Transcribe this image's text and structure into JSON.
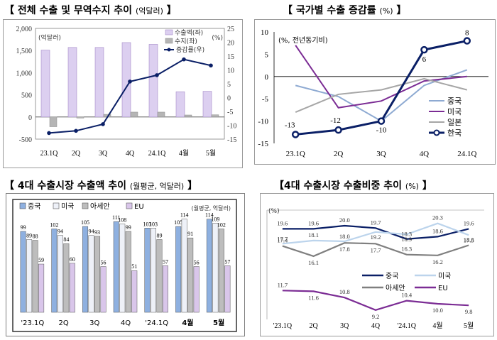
{
  "titles": {
    "p1_main": "【 전체 수출 및 무역수지 추이",
    "p1_sub": "(억달러)",
    "p1_end": "】",
    "p2_main": "【 국가별 수출 증감률",
    "p2_sub": "(%)",
    "p2_end": "】",
    "p3_main": "【 4대 수출시장 수출액 추이",
    "p3_sub": "(월평균, 억달러)",
    "p3_end": "】",
    "p4_main": "【4대 수출시장 수출비중 추이",
    "p4_sub": "(%)",
    "p4_end": "】"
  },
  "chart_data": [
    {
      "type": "bar",
      "categories": [
        "23.1Q",
        "2Q",
        "3Q",
        "4Q",
        "24.1Q",
        "4월",
        "5월"
      ],
      "unit_left": "(억달러)",
      "unit_right": "(%)",
      "ylim_left": [
        -500,
        2000
      ],
      "yticks_left": [
        "2,000",
        "1,500",
        "1,000",
        "500",
        "0",
        "-500"
      ],
      "ylim_right": [
        -15,
        25
      ],
      "yticks_right": [
        "25",
        "20",
        "15",
        "10",
        "5",
        "0",
        "-5",
        "-10",
        "-15"
      ],
      "series": [
        {
          "name": "수출액(좌)",
          "kind": "bar",
          "axis": "left",
          "color": "#dccff0",
          "values": [
            1510,
            1570,
            1570,
            1680,
            1640,
            570,
            580
          ]
        },
        {
          "name": "수지(좌)",
          "kind": "bar",
          "axis": "left",
          "color": "#b5b5b5",
          "values": [
            -220,
            -25,
            60,
            110,
            110,
            45,
            50
          ]
        },
        {
          "name": "증감률(우)",
          "kind": "line",
          "axis": "right",
          "color": "#0a1f66",
          "values": [
            -12.8,
            -12,
            -9.6,
            5.8,
            8.1,
            13.8,
            11.6
          ]
        }
      ]
    },
    {
      "type": "line",
      "title": "국가별 수출 증감률",
      "categories": [
        "23.1Q",
        "2Q",
        "3Q",
        "4Q",
        "24.1Q"
      ],
      "unit": "(%, 전년동기비)",
      "ylim": [
        -15,
        10
      ],
      "yticks": [
        "10",
        "5",
        "0",
        "-5",
        "-10",
        "-15"
      ],
      "series": [
        {
          "name": "중국",
          "color": "#8eaad2",
          "values": [
            -2,
            -4.5,
            -10,
            -2,
            1.5
          ]
        },
        {
          "name": "미국",
          "color": "#7b2c94",
          "values": [
            7,
            -7,
            -5.5,
            -1,
            0
          ]
        },
        {
          "name": "일본",
          "color": "#a6a6a6",
          "values": [
            -8,
            -4,
            -3,
            -0.5,
            -3
          ]
        },
        {
          "name": "한국",
          "color": "#0a1f66",
          "values": [
            -13,
            -12,
            -10,
            6,
            8
          ],
          "labels": [
            "-13",
            "-12",
            "-10",
            "6",
            "8"
          ]
        }
      ]
    },
    {
      "type": "bar",
      "title": "4대 수출시장 수출액 추이",
      "categories": [
        "'23.1Q",
        "2Q",
        "3Q",
        "4Q",
        "'24.1Q",
        "4월",
        "5월"
      ],
      "unit": "(월평균, 억달러)",
      "ylim": [
        0,
        125
      ],
      "series": [
        {
          "name": "중국",
          "color": "#8eb0e0",
          "values": [
            99,
            102,
            105,
            111,
            103,
            105,
            114
          ]
        },
        {
          "name": "미국",
          "color": "#eef1f8",
          "values": [
            89,
            94,
            94,
            108,
            103,
            114,
            109
          ]
        },
        {
          "name": "아세안",
          "color": "#bdbdbd",
          "values": [
            88,
            84,
            93,
            99,
            89,
            91,
            102
          ]
        },
        {
          "name": "EU",
          "color": "#d9c6ea",
          "values": [
            59,
            60,
            56,
            51,
            57,
            56,
            57
          ]
        }
      ]
    },
    {
      "type": "line",
      "title": "4대 수출시장 수출비중 추이",
      "categories": [
        "'23.1Q",
        "2Q",
        "3Q",
        "4Q",
        "'24.1Q",
        "4월",
        "5월"
      ],
      "unit": "(%)",
      "ylim": [
        8,
        22
      ],
      "series": [
        {
          "name": "중국",
          "color": "#0a1f66",
          "values": [
            19.6,
            19.6,
            20.0,
            19.7,
            18.3,
            18.6,
            19.6
          ],
          "labels": [
            "19.6",
            "19.6",
            "20.0",
            "19.7",
            "18.3",
            "18.6",
            "19.6"
          ]
        },
        {
          "name": "미국",
          "color": "#bcd4ec",
          "values": [
            17.7,
            18.1,
            18.0,
            19.2,
            18.9,
            20.3,
            18.8
          ],
          "labels": [
            "17.7",
            "18.1",
            "18.0",
            "19.2",
            "18.9",
            "20.3",
            "18.8"
          ]
        },
        {
          "name": "아세안",
          "color": "#7f7f7f",
          "values": [
            17.4,
            16.1,
            17.8,
            17.7,
            16.3,
            16.2,
            17.5
          ],
          "labels": [
            "17.4",
            "16.1",
            "17.8",
            "17.7",
            "16.3",
            "16.2",
            "17.5"
          ]
        },
        {
          "name": "EU",
          "color": "#7b2c94",
          "values": [
            11.7,
            11.6,
            10.8,
            9.2,
            10.4,
            10.0,
            9.8
          ],
          "labels": [
            "11.7",
            "11.6",
            "10.8",
            "9.2",
            "10.4",
            "10.0",
            "9.8"
          ]
        }
      ]
    }
  ]
}
